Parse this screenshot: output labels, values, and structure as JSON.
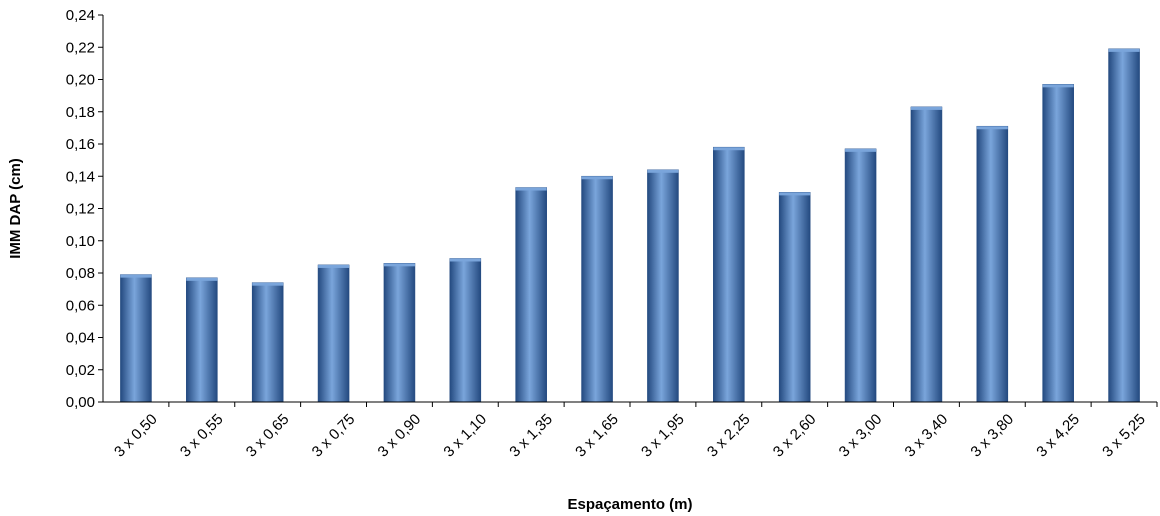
{
  "chart_data": {
    "type": "bar",
    "title": "",
    "xlabel": "Espaçamento (m)",
    "ylabel": "IMM DAP (cm)",
    "ylim": [
      0,
      0.24
    ],
    "ytick_step": 0.02,
    "ytick_labels": [
      "0,00",
      "0,02",
      "0,04",
      "0,06",
      "0,08",
      "0,10",
      "0,12",
      "0,14",
      "0,16",
      "0,18",
      "0,20",
      "0,22",
      "0,24"
    ],
    "categories": [
      "3 x 0,50",
      "3 x 0,55",
      "3 x 0,65",
      "3 x 0,75",
      "3 x 0,90",
      "3 x 1,10",
      "3 x 1,35",
      "3 x 1,65",
      "3 x 1,95",
      "3 x 2,25",
      "3 x 2,60",
      "3 x 3,00",
      "3 x 3,40",
      "3 x 3,80",
      "3 x 4,25",
      "3 x 5,25"
    ],
    "values": [
      0.079,
      0.077,
      0.074,
      0.085,
      0.086,
      0.089,
      0.133,
      0.14,
      0.144,
      0.158,
      0.13,
      0.157,
      0.183,
      0.171,
      0.197,
      0.219
    ],
    "grid": false,
    "legend": "none",
    "bar_color": "#4f81bd",
    "bar_color_dark": "#244a80",
    "bar_color_light": "#7aa5db"
  }
}
